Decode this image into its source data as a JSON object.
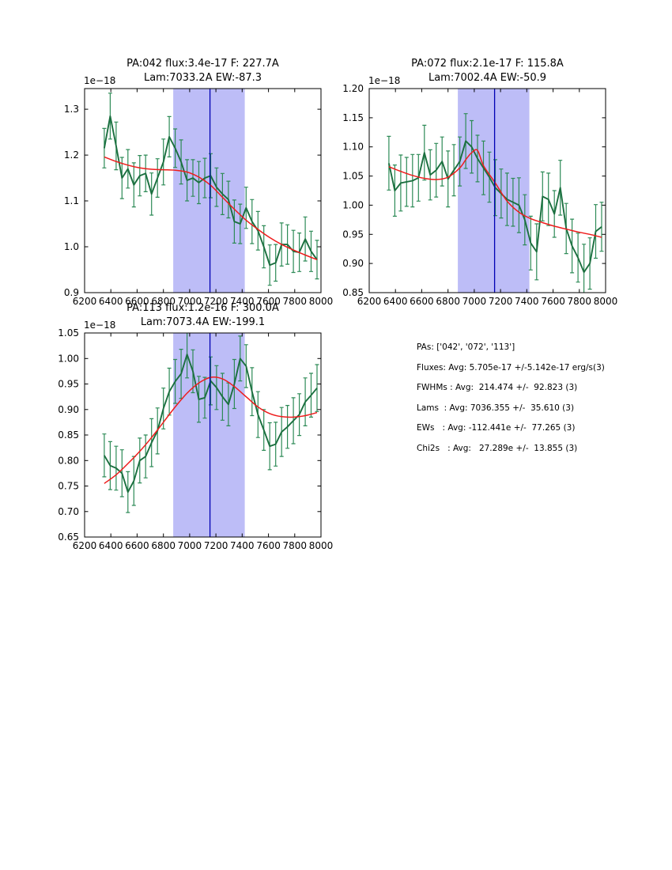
{
  "page": {
    "background": "#ffffff"
  },
  "colors": {
    "band": "#bdbdf7",
    "vline": "#0000b4",
    "axis": "#000000",
    "text": "#000000",
    "spectrum_line": "#1b6f3f",
    "errorbar": "#2e8b57",
    "fit_line": "#ee1c1c"
  },
  "stats_panel": {
    "lines": [
      "PAs: ['042', '072', '113']",
      "Fluxes: Avg: 5.705e-17 +/-5.142e-17 erg/s(3)",
      "FWHMs : Avg:  214.474 +/-  92.823 (3)",
      "Lams  : Avg: 7036.355 +/-  35.610 (3)",
      "EWs   : Avg: -112.441e +/-  77.265 (3)",
      "Chi2s   : Avg:   27.289e +/-  13.855 (3)"
    ]
  },
  "chart_data": [
    {
      "type": "line",
      "title_line1": "PA:042 flux:3.4e-17 F: 227.7A",
      "title_line2": "Lam:7033.2A EW:-87.3",
      "offset_label": "1e−18",
      "xlim": [
        6200,
        8000
      ],
      "ylim": [
        0.9,
        1.345
      ],
      "grid": false,
      "xticks": [
        6200,
        6400,
        6600,
        6800,
        7000,
        7200,
        7400,
        7600,
        7800,
        8000
      ],
      "ytick_values": [
        0.9,
        1.0,
        1.1,
        1.2,
        1.3
      ],
      "ytick_labels": [
        "0.9",
        "1.0",
        "1.1",
        "1.2",
        "1.3"
      ],
      "band": [
        6875,
        7420
      ],
      "vline": 7155,
      "series": [
        {
          "name": "spectrum",
          "style": "errorbar-line",
          "x": [
            6350,
            6395,
            6440,
            6485,
            6530,
            6575,
            6620,
            6665,
            6710,
            6755,
            6800,
            6845,
            6890,
            6935,
            6980,
            7025,
            7070,
            7115,
            7160,
            7205,
            7250,
            7295,
            7340,
            7385,
            7430,
            7475,
            7520,
            7565,
            7610,
            7655,
            7700,
            7745,
            7790,
            7835,
            7880,
            7925,
            7970
          ],
          "y": [
            1.215,
            1.285,
            1.22,
            1.15,
            1.17,
            1.135,
            1.155,
            1.16,
            1.115,
            1.15,
            1.185,
            1.24,
            1.215,
            1.185,
            1.145,
            1.15,
            1.14,
            1.15,
            1.155,
            1.13,
            1.115,
            1.103,
            1.055,
            1.05,
            1.085,
            1.055,
            1.035,
            1.0,
            0.96,
            0.965,
            1.005,
            1.005,
            0.99,
            0.988,
            1.017,
            0.99,
            0.972
          ],
          "yerr": [
            0.043,
            0.05,
            0.052,
            0.045,
            0.042,
            0.048,
            0.044,
            0.04,
            0.046,
            0.042,
            0.05,
            0.044,
            0.042,
            0.048,
            0.045,
            0.04,
            0.046,
            0.043,
            0.048,
            0.042,
            0.045,
            0.04,
            0.047,
            0.043,
            0.045,
            0.048,
            0.042,
            0.046,
            0.044,
            0.04,
            0.047,
            0.043,
            0.046,
            0.042,
            0.048,
            0.044,
            0.042
          ]
        },
        {
          "name": "fit",
          "style": "smooth-line",
          "x": [
            6350,
            6440,
            6530,
            6620,
            6710,
            6800,
            6890,
            6980,
            7070,
            7160,
            7250,
            7340,
            7430,
            7520,
            7610,
            7700,
            7790,
            7880,
            7970
          ],
          "y": [
            1.196,
            1.186,
            1.178,
            1.172,
            1.169,
            1.168,
            1.167,
            1.163,
            1.152,
            1.134,
            1.108,
            1.082,
            1.058,
            1.038,
            1.02,
            1.005,
            0.993,
            0.982,
            0.972
          ]
        }
      ]
    },
    {
      "type": "line",
      "title_line1": "PA:072 flux:2.1e-17 F: 115.8A",
      "title_line2": "Lam:7002.4A EW:-50.9",
      "offset_label": "1e−18",
      "xlim": [
        6200,
        8000
      ],
      "ylim": [
        0.85,
        1.2
      ],
      "grid": false,
      "xticks": [
        6200,
        6400,
        6600,
        6800,
        7000,
        7200,
        7400,
        7600,
        7800,
        8000
      ],
      "ytick_values": [
        0.85,
        0.9,
        0.95,
        1.0,
        1.05,
        1.1,
        1.15,
        1.2
      ],
      "ytick_labels": [
        "0.85",
        "0.90",
        "0.95",
        "1.00",
        "1.05",
        "1.10",
        "1.15",
        "1.20"
      ],
      "band": [
        6875,
        7420
      ],
      "vline": 7155,
      "series": [
        {
          "name": "spectrum",
          "style": "errorbar-line",
          "x": [
            6350,
            6395,
            6440,
            6485,
            6530,
            6575,
            6620,
            6665,
            6710,
            6755,
            6800,
            6845,
            6890,
            6935,
            6980,
            7025,
            7070,
            7115,
            7160,
            7205,
            7250,
            7295,
            7340,
            7385,
            7430,
            7475,
            7520,
            7565,
            7610,
            7655,
            7700,
            7745,
            7790,
            7835,
            7880,
            7925,
            7970
          ],
          "y": [
            1.072,
            1.025,
            1.038,
            1.04,
            1.042,
            1.047,
            1.09,
            1.052,
            1.06,
            1.075,
            1.045,
            1.06,
            1.075,
            1.11,
            1.1,
            1.08,
            1.064,
            1.048,
            1.03,
            1.02,
            1.01,
            1.005,
            1.0,
            0.975,
            0.935,
            0.92,
            1.015,
            1.01,
            0.985,
            1.03,
            0.96,
            0.93,
            0.91,
            0.885,
            0.9,
            0.955,
            0.963
          ],
          "yerr": [
            0.046,
            0.044,
            0.048,
            0.042,
            0.045,
            0.04,
            0.047,
            0.043,
            0.046,
            0.042,
            0.048,
            0.044,
            0.042,
            0.047,
            0.045,
            0.04,
            0.046,
            0.043,
            0.048,
            0.042,
            0.045,
            0.041,
            0.047,
            0.043,
            0.046,
            0.048,
            0.042,
            0.045,
            0.04,
            0.047,
            0.043,
            0.046,
            0.042,
            0.048,
            0.044,
            0.046,
            0.042
          ]
        },
        {
          "name": "fit",
          "style": "smooth-line",
          "x": [
            6350,
            6440,
            6530,
            6620,
            6710,
            6800,
            6890,
            6935,
            6980,
            7025,
            7070,
            7160,
            7250,
            7340,
            7430,
            7520,
            7610,
            7700,
            7790,
            7880,
            7970
          ],
          "y": [
            1.066,
            1.058,
            1.051,
            1.046,
            1.044,
            1.048,
            1.064,
            1.078,
            1.09,
            1.094,
            1.068,
            1.038,
            1.007,
            0.988,
            0.977,
            0.97,
            0.964,
            0.959,
            0.954,
            0.95,
            0.945
          ]
        }
      ]
    },
    {
      "type": "line",
      "title_line1": "PA:113 flux:1.2e-16 F: 300.0A",
      "title_line2": "Lam:7073.4A EW:-199.1",
      "offset_label": "1e−18",
      "xlim": [
        6200,
        8000
      ],
      "ylim": [
        0.65,
        1.05
      ],
      "grid": false,
      "xticks": [
        6200,
        6400,
        6600,
        6800,
        7000,
        7200,
        7400,
        7600,
        7800,
        8000
      ],
      "ytick_values": [
        0.65,
        0.7,
        0.75,
        0.8,
        0.85,
        0.9,
        0.95,
        1.0,
        1.05
      ],
      "ytick_labels": [
        "0.65",
        "0.70",
        "0.75",
        "0.80",
        "0.85",
        "0.90",
        "0.95",
        "1.00",
        "1.05"
      ],
      "band": [
        6875,
        7420
      ],
      "vline": 7155,
      "series": [
        {
          "name": "spectrum",
          "style": "errorbar-line",
          "x": [
            6350,
            6395,
            6440,
            6485,
            6530,
            6575,
            6620,
            6665,
            6710,
            6755,
            6800,
            6845,
            6890,
            6935,
            6980,
            7025,
            7070,
            7115,
            7160,
            7205,
            7250,
            7295,
            7340,
            7385,
            7430,
            7475,
            7520,
            7565,
            7610,
            7655,
            7700,
            7745,
            7790,
            7835,
            7880,
            7925,
            7970
          ],
          "y": [
            0.81,
            0.79,
            0.785,
            0.775,
            0.738,
            0.76,
            0.8,
            0.808,
            0.835,
            0.858,
            0.902,
            0.935,
            0.955,
            0.97,
            1.008,
            0.975,
            0.92,
            0.923,
            0.956,
            0.943,
            0.925,
            0.91,
            0.95,
            1.0,
            0.985,
            0.935,
            0.89,
            0.86,
            0.828,
            0.832,
            0.856,
            0.866,
            0.878,
            0.89,
            0.915,
            0.928,
            0.942
          ],
          "yerr": [
            0.042,
            0.047,
            0.043,
            0.046,
            0.04,
            0.048,
            0.044,
            0.042,
            0.047,
            0.045,
            0.04,
            0.046,
            0.043,
            0.048,
            0.046,
            0.042,
            0.045,
            0.04,
            0.047,
            0.043,
            0.046,
            0.042,
            0.048,
            0.044,
            0.042,
            0.047,
            0.045,
            0.04,
            0.046,
            0.043,
            0.048,
            0.042,
            0.045,
            0.041,
            0.047,
            0.043,
            0.046
          ]
        },
        {
          "name": "fit",
          "style": "smooth-line",
          "x": [
            6350,
            6440,
            6530,
            6620,
            6710,
            6800,
            6890,
            6980,
            7070,
            7160,
            7250,
            7340,
            7430,
            7520,
            7610,
            7700,
            7790,
            7880,
            7970
          ],
          "y": [
            0.755,
            0.772,
            0.794,
            0.818,
            0.845,
            0.875,
            0.905,
            0.932,
            0.952,
            0.963,
            0.96,
            0.945,
            0.925,
            0.905,
            0.892,
            0.886,
            0.885,
            0.888,
            0.894
          ]
        }
      ]
    }
  ]
}
